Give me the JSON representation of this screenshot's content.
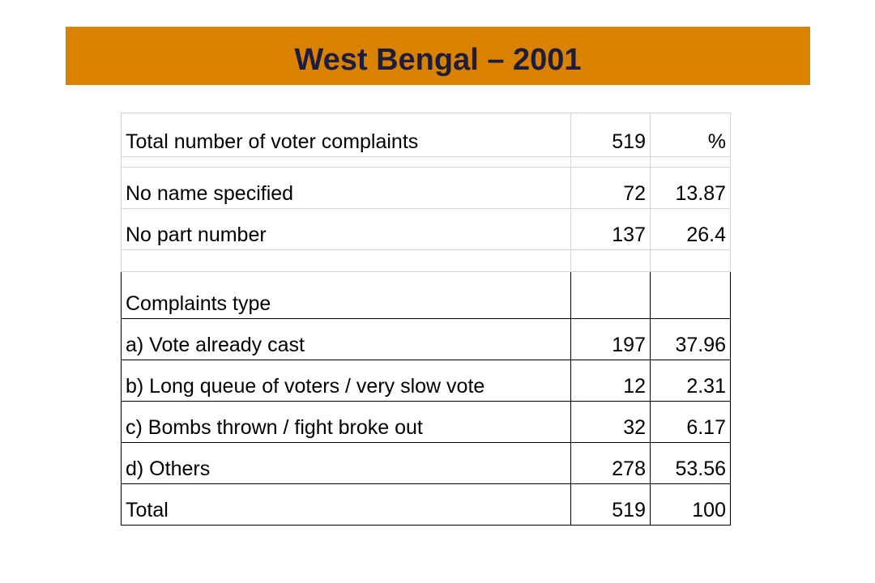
{
  "slide": {
    "title": "West Bengal – 2001"
  },
  "table": {
    "total_row": {
      "label": "Total number of voter complaints",
      "count": "519",
      "pct": "%"
    },
    "no_name_row": {
      "label": "No name specified",
      "count": "72",
      "pct": "13.87"
    },
    "no_part_row": {
      "label": "No part number",
      "count": "137",
      "pct": "26.4"
    },
    "type_header": {
      "label": "Complaints type"
    },
    "rows": [
      {
        "label": "a) Vote already cast",
        "count": "197",
        "pct": "37.96"
      },
      {
        "label": "b) Long queue of voters / very slow vote",
        "count": "12",
        "pct": "2.31"
      },
      {
        "label": "c) Bombs thrown / fight broke out",
        "count": "32",
        "pct": "6.17"
      },
      {
        "label": "d) Others",
        "count": "278",
        "pct": "53.56"
      }
    ],
    "grand_total": {
      "label": "Total",
      "count": "519",
      "pct": "100"
    }
  },
  "colors": {
    "title_bar": "#d98200",
    "title_text": "#1e1e3c"
  }
}
